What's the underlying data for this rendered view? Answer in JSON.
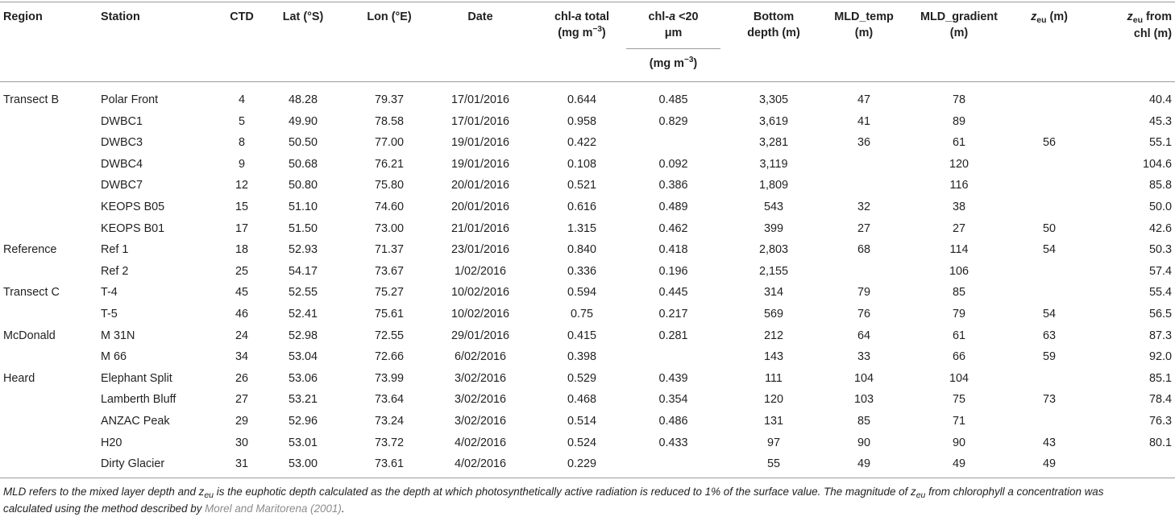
{
  "headers": {
    "region": "Region",
    "station": "Station",
    "ctd": "CTD",
    "lat": "Lat (°S)",
    "lon": "Lon (°E)",
    "date": "Date",
    "chl_total_1": "chl-",
    "chl_total_a": "a",
    "chl_total_2": " total",
    "chl_total_unit": "(mg m",
    "chl_total_exp": "−3",
    "chl_total_close": ")",
    "chl20_1": "chl-",
    "chl20_a": "a",
    "chl20_2": " <20",
    "chl20_3": "μm",
    "chl20_unit": "(mg m",
    "chl20_exp": "−3",
    "chl20_close": ")",
    "bottom_1": "Bottom",
    "bottom_2": "depth (m)",
    "mldt_1": "MLD_temp",
    "mldt_2": "(m)",
    "mldg_1": "MLD_gradient",
    "mldg_2": "(m)",
    "zeu_z": "z",
    "zeu_sub": "eu",
    "zeu_rest": " (m)",
    "zeuchl_z": "z",
    "zeuchl_sub": "eu",
    "zeuchl_rest": " from",
    "zeuchl_2": "chl (m)"
  },
  "rows": [
    {
      "region": "Transect B",
      "station": "Polar Front",
      "ctd": "4",
      "lat": "48.28",
      "lon": "79.37",
      "date": "17/01/2016",
      "chl": "0.644",
      "chl20": "0.485",
      "depth": "3,305",
      "mldt": "47",
      "mldg": "78",
      "zeu": "",
      "zeuchl": "40.4"
    },
    {
      "region": "",
      "station": "DWBC1",
      "ctd": "5",
      "lat": "49.90",
      "lon": "78.58",
      "date": "17/01/2016",
      "chl": "0.958",
      "chl20": "0.829",
      "depth": "3,619",
      "mldt": "41",
      "mldg": "89",
      "zeu": "",
      "zeuchl": "45.3"
    },
    {
      "region": "",
      "station": "DWBC3",
      "ctd": "8",
      "lat": "50.50",
      "lon": "77.00",
      "date": "19/01/2016",
      "chl": "0.422",
      "chl20": "",
      "depth": "3,281",
      "mldt": "36",
      "mldg": "61",
      "zeu": "56",
      "zeuchl": "55.1"
    },
    {
      "region": "",
      "station": "DWBC4",
      "ctd": "9",
      "lat": "50.68",
      "lon": "76.21",
      "date": "19/01/2016",
      "chl": "0.108",
      "chl20": "0.092",
      "depth": "3,119",
      "mldt": "",
      "mldg": "120",
      "zeu": "",
      "zeuchl": "104.6"
    },
    {
      "region": "",
      "station": "DWBC7",
      "ctd": "12",
      "lat": "50.80",
      "lon": "75.80",
      "date": "20/01/2016",
      "chl": "0.521",
      "chl20": "0.386",
      "depth": "1,809",
      "mldt": "",
      "mldg": "116",
      "zeu": "",
      "zeuchl": "85.8"
    },
    {
      "region": "",
      "station": "KEOPS B05",
      "ctd": "15",
      "lat": "51.10",
      "lon": "74.60",
      "date": "20/01/2016",
      "chl": "0.616",
      "chl20": "0.489",
      "depth": "543",
      "mldt": "32",
      "mldg": "38",
      "zeu": "",
      "zeuchl": "50.0"
    },
    {
      "region": "",
      "station": "KEOPS B01",
      "ctd": "17",
      "lat": "51.50",
      "lon": "73.00",
      "date": "21/01/2016",
      "chl": "1.315",
      "chl20": "0.462",
      "depth": "399",
      "mldt": "27",
      "mldg": "27",
      "zeu": "50",
      "zeuchl": "42.6"
    },
    {
      "region": "Reference",
      "station": "Ref 1",
      "ctd": "18",
      "lat": "52.93",
      "lon": "71.37",
      "date": "23/01/2016",
      "chl": "0.840",
      "chl20": "0.418",
      "depth": "2,803",
      "mldt": "68",
      "mldg": "114",
      "zeu": "54",
      "zeuchl": "50.3"
    },
    {
      "region": "",
      "station": "Ref 2",
      "ctd": "25",
      "lat": "54.17",
      "lon": "73.67",
      "date": "1/02/2016",
      "chl": "0.336",
      "chl20": "0.196",
      "depth": "2,155",
      "mldt": "",
      "mldg": "106",
      "zeu": "",
      "zeuchl": "57.4"
    },
    {
      "region": "Transect C",
      "station": "T-4",
      "ctd": "45",
      "lat": "52.55",
      "lon": "75.27",
      "date": "10/02/2016",
      "chl": "0.594",
      "chl20": "0.445",
      "depth": "314",
      "mldt": "79",
      "mldg": "85",
      "zeu": "",
      "zeuchl": "55.4"
    },
    {
      "region": "",
      "station": "T-5",
      "ctd": "46",
      "lat": "52.41",
      "lon": "75.61",
      "date": "10/02/2016",
      "chl": "0.75",
      "chl20": "0.217",
      "depth": "569",
      "mldt": "76",
      "mldg": "79",
      "zeu": "54",
      "zeuchl": "56.5"
    },
    {
      "region": "McDonald",
      "station": "M 31N",
      "ctd": "24",
      "lat": "52.98",
      "lon": "72.55",
      "date": "29/01/2016",
      "chl": "0.415",
      "chl20": "0.281",
      "depth": "212",
      "mldt": "64",
      "mldg": "61",
      "zeu": "63",
      "zeuchl": "87.3"
    },
    {
      "region": "",
      "station": "M 66",
      "ctd": "34",
      "lat": "53.04",
      "lon": "72.66",
      "date": "6/02/2016",
      "chl": "0.398",
      "chl20": "",
      "depth": "143",
      "mldt": "33",
      "mldg": "66",
      "zeu": "59",
      "zeuchl": "92.0"
    },
    {
      "region": "Heard",
      "station": "Elephant Split",
      "ctd": "26",
      "lat": "53.06",
      "lon": "73.99",
      "date": "3/02/2016",
      "chl": "0.529",
      "chl20": "0.439",
      "depth": "111",
      "mldt": "104",
      "mldg": "104",
      "zeu": "",
      "zeuchl": "85.1"
    },
    {
      "region": "",
      "station": "Lamberth Bluff",
      "ctd": "27",
      "lat": "53.21",
      "lon": "73.64",
      "date": "3/02/2016",
      "chl": "0.468",
      "chl20": "0.354",
      "depth": "120",
      "mldt": "103",
      "mldg": "75",
      "zeu": "73",
      "zeuchl": "78.4"
    },
    {
      "region": "",
      "station": "ANZAC Peak",
      "ctd": "29",
      "lat": "52.96",
      "lon": "73.24",
      "date": "3/02/2016",
      "chl": "0.514",
      "chl20": "0.486",
      "depth": "131",
      "mldt": "85",
      "mldg": "71",
      "zeu": "",
      "zeuchl": "76.3"
    },
    {
      "region": "",
      "station": "H20",
      "ctd": "30",
      "lat": "53.01",
      "lon": "73.72",
      "date": "4/02/2016",
      "chl": "0.524",
      "chl20": "0.433",
      "depth": "97",
      "mldt": "90",
      "mldg": "90",
      "zeu": "43",
      "zeuchl": "80.1"
    },
    {
      "region": "",
      "station": "Dirty Glacier",
      "ctd": "31",
      "lat": "53.00",
      "lon": "73.61",
      "date": "4/02/2016",
      "chl": "0.229",
      "chl20": "",
      "depth": "55",
      "mldt": "49",
      "mldg": "49",
      "zeu": "49",
      "zeuchl": ""
    }
  ],
  "footnote": {
    "line1_a": "MLD refers to the mixed layer depth and z",
    "line1_sub": "eu",
    "line1_b": " is the euphotic depth calculated as the depth at which photosynthetically active radiation is reduced to 1% of the surface value. The magnitude of z",
    "line1_sub2": "eu",
    "line1_c": " from chlorophyll a concentration was",
    "line2_a": "calculated using the method described by ",
    "line2_link": "Morel and Maritorena (2001)",
    "line2_b": "."
  }
}
